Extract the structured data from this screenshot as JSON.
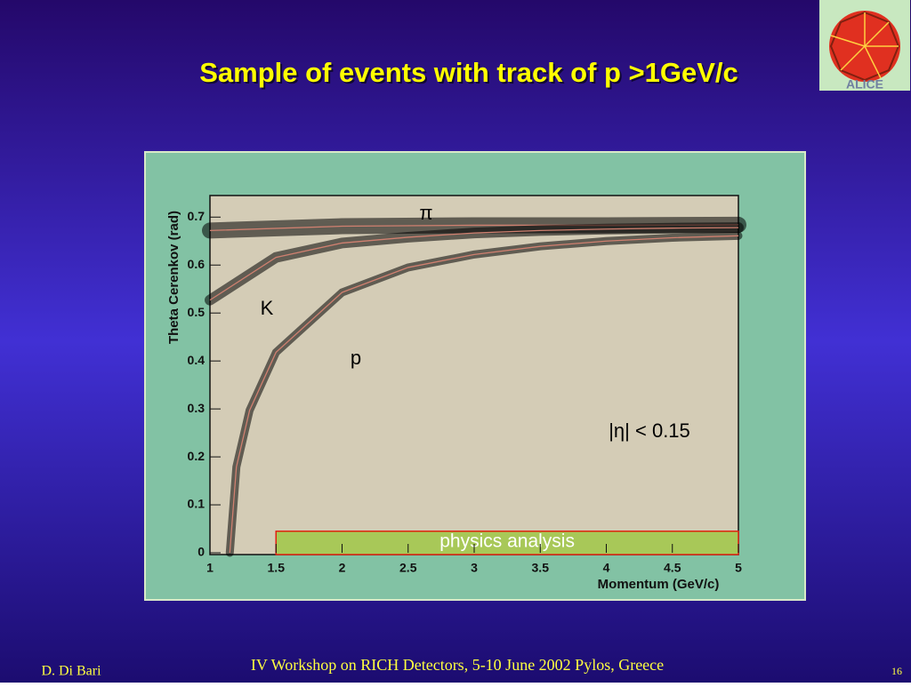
{
  "chart_data": {
    "type": "line",
    "title": "Sample of events with track of p >1GeV/c",
    "xlabel": "Momentum (GeV/c)",
    "ylabel": "Theta Cerenkov (rad)",
    "xlim": [
      1,
      5
    ],
    "xticks": [
      1,
      1.5,
      2,
      2.5,
      3,
      3.5,
      4,
      4.5,
      5
    ],
    "ylim": [
      0,
      0.745
    ],
    "yticks": [
      0,
      0.1,
      0.2,
      0.3,
      0.4,
      0.5,
      0.6,
      0.7
    ],
    "series": [
      {
        "name": "π",
        "color": "#d08070",
        "x": [
          1,
          2,
          3,
          4,
          5
        ],
        "values": [
          0.672,
          0.681,
          0.683,
          0.683,
          0.684
        ]
      },
      {
        "name": "K",
        "color": "#d08070",
        "x": [
          1,
          1.5,
          2,
          2.5,
          3,
          3.5,
          4,
          4.5,
          5
        ],
        "values": [
          0.527,
          0.616,
          0.646,
          0.658,
          0.667,
          0.672,
          0.675,
          0.677,
          0.678
        ]
      },
      {
        "name": "p",
        "color": "#d08070",
        "x": [
          1.15,
          1.2,
          1.3,
          1.5,
          2,
          2.5,
          3,
          3.5,
          4,
          4.5,
          5
        ],
        "values": [
          0,
          0.179,
          0.297,
          0.418,
          0.543,
          0.595,
          0.622,
          0.639,
          0.65,
          0.657,
          0.661
        ]
      }
    ],
    "annotation": "|η| < 0.15",
    "region": {
      "label": "physics analysis",
      "xlim": [
        1.5,
        5
      ],
      "ylim": [
        0,
        0.045
      ]
    }
  },
  "slide": {
    "logo": "ALICE",
    "footer_left": "D. Di Bari",
    "footer_center": "IV Workshop on RICH Detectors, 5-10 June 2002 Pylos, Greece",
    "page_number": "16"
  }
}
